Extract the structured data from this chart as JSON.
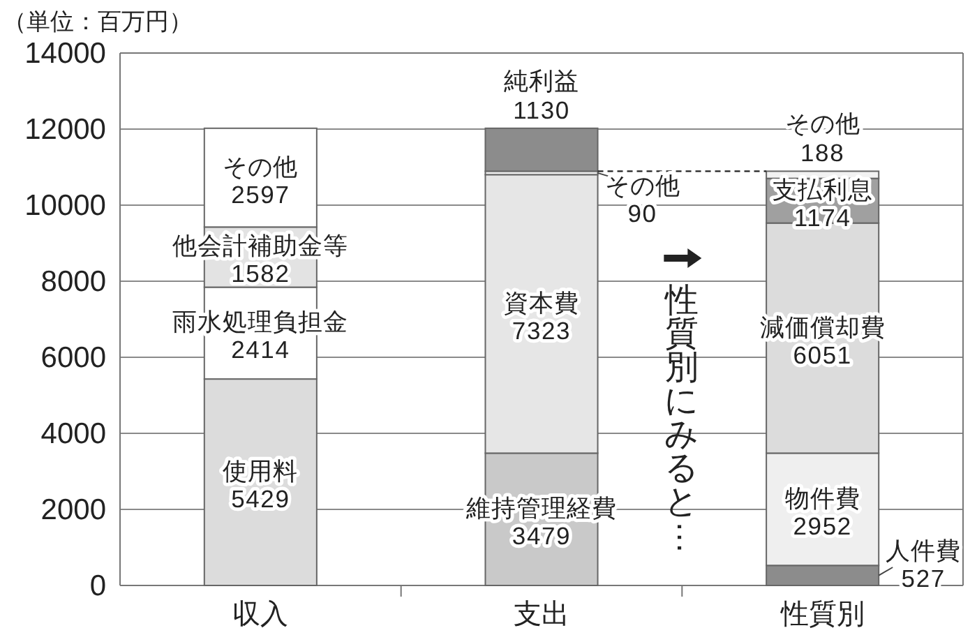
{
  "chart_data": {
    "type": "bar",
    "stacked": true,
    "categories": [
      "収入",
      "支出",
      "性質別"
    ],
    "series": [
      {
        "name": "使用料",
        "color": "#dcdcdc",
        "values": [
          5429,
          null,
          null
        ]
      },
      {
        "name": "雨水処理負担金",
        "color": "#ffffff",
        "values": [
          2414,
          null,
          null
        ]
      },
      {
        "name": "他会計補助金等",
        "color": "#e3e3e3",
        "values": [
          1582,
          null,
          null
        ]
      },
      {
        "name": "その他",
        "color": "#ffffff",
        "values": [
          2597,
          null,
          null
        ]
      },
      {
        "name": "維持管理経費",
        "color": "#c9c9c9",
        "values": [
          null,
          3479,
          null
        ]
      },
      {
        "name": "資本費",
        "color": "#e6e6e6",
        "values": [
          null,
          7323,
          null
        ]
      },
      {
        "name": "その他",
        "color": "#f0f0f0",
        "values": [
          null,
          90,
          null
        ]
      },
      {
        "name": "純利益",
        "color": "#8c8c8c",
        "values": [
          null,
          1130,
          null
        ]
      },
      {
        "name": "人件費",
        "color": "#8c8c8c",
        "values": [
          null,
          null,
          527
        ]
      },
      {
        "name": "物件費",
        "color": "#efefef",
        "values": [
          null,
          null,
          2952
        ]
      },
      {
        "name": "減価償却費",
        "color": "#dcdcdc",
        "values": [
          null,
          null,
          6051
        ]
      },
      {
        "name": "支払利息",
        "color": "#a0a0a0",
        "values": [
          null,
          null,
          1174
        ]
      },
      {
        "name": "その他",
        "color": "#f2f2f2",
        "values": [
          null,
          null,
          188
        ]
      }
    ],
    "ylim": [
      0,
      14000
    ],
    "yticks": [
      0,
      2000,
      4000,
      6000,
      8000,
      10000,
      12000,
      14000
    ],
    "grid": "y",
    "data_labels": true,
    "ref_lines": [
      {
        "axis": "y",
        "value": 10892,
        "line_style": "dashed",
        "color": "#222222"
      }
    ],
    "annotations": [
      "（単位：百万円）",
      "性質別にみると…"
    ]
  }
}
